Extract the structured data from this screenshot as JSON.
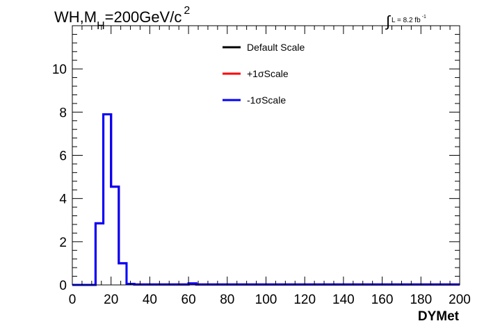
{
  "chart_data": {
    "type": "line",
    "title": {
      "prefix": "WH,M",
      "subscript": "H",
      "main": "=200GeV/c",
      "superscript": "2"
    },
    "lumi": {
      "symbol": "∫",
      "text": "L = 8.2 fb",
      "superscript": "-1"
    },
    "xlabel": "DYMet",
    "ylabel": "",
    "xlim": [
      0,
      200
    ],
    "ylim": [
      0,
      12
    ],
    "xticks": [
      0,
      20,
      40,
      60,
      80,
      100,
      120,
      140,
      160,
      180,
      200
    ],
    "yticks": [
      0,
      2,
      4,
      6,
      8,
      10
    ],
    "grid": false,
    "legend_position": "top-center",
    "bin_width": 4,
    "bin_edges_start": 0,
    "series": [
      {
        "name": "Default Scale",
        "color": "#000000",
        "values": [
          0,
          0,
          0,
          2.85,
          7.9,
          4.55,
          1.0,
          0.05,
          0.02,
          0.02,
          0.02,
          0.02,
          0.02,
          0.02,
          0.02,
          0.07,
          0.02,
          0.02,
          0.02,
          0.02,
          0.02,
          0.02,
          0.02,
          0.02,
          0.02,
          0.02,
          0.02,
          0.02,
          0.02,
          0.02,
          0.02,
          0.02,
          0.02,
          0.02,
          0.02,
          0.02,
          0.02,
          0.02,
          0.02,
          0.02,
          0.02,
          0.02,
          0.02,
          0.02,
          0.02,
          0.02,
          0.02,
          0.02,
          0.02,
          0.02
        ]
      },
      {
        "name": "+1σScale",
        "color": "#ff0000",
        "values": [
          0,
          0,
          0,
          2.85,
          7.9,
          4.55,
          1.0,
          0.05,
          0.02,
          0.02,
          0.02,
          0.02,
          0.02,
          0.02,
          0.02,
          0.07,
          0.02,
          0.02,
          0.02,
          0.02,
          0.02,
          0.02,
          0.02,
          0.02,
          0.02,
          0.02,
          0.02,
          0.02,
          0.02,
          0.02,
          0.02,
          0.02,
          0.02,
          0.02,
          0.02,
          0.02,
          0.02,
          0.02,
          0.02,
          0.02,
          0.02,
          0.02,
          0.02,
          0.02,
          0.02,
          0.02,
          0.02,
          0.02,
          0.02,
          0.02
        ]
      },
      {
        "name": "-1σScale",
        "color": "#0000ff",
        "values": [
          0,
          0,
          0,
          2.85,
          7.9,
          4.55,
          1.0,
          0.05,
          0.02,
          0.02,
          0.02,
          0.02,
          0.02,
          0.02,
          0.02,
          0.07,
          0.02,
          0.02,
          0.02,
          0.02,
          0.02,
          0.02,
          0.02,
          0.02,
          0.02,
          0.02,
          0.02,
          0.02,
          0.02,
          0.02,
          0.02,
          0.02,
          0.02,
          0.02,
          0.02,
          0.02,
          0.02,
          0.02,
          0.02,
          0.02,
          0.02,
          0.02,
          0.02,
          0.02,
          0.02,
          0.02,
          0.02,
          0.02,
          0.02,
          0.02
        ]
      }
    ]
  }
}
